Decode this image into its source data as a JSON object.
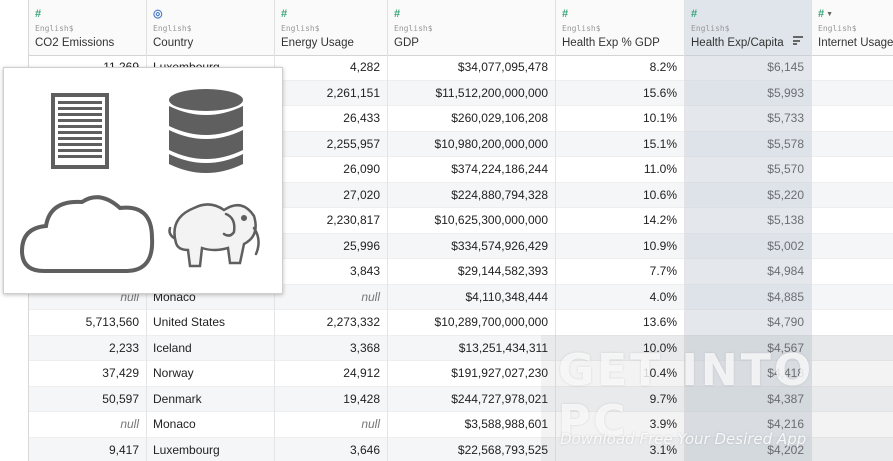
{
  "columns": [
    {
      "type_label": "English$",
      "name": "CO2 Emissions",
      "icon": "hash-icon"
    },
    {
      "type_label": "English$",
      "name": "Country",
      "icon": "globe-icon"
    },
    {
      "type_label": "English$",
      "name": "Energy Usage",
      "icon": "hash-icon"
    },
    {
      "type_label": "English$",
      "name": "GDP",
      "icon": "hash-icon"
    },
    {
      "type_label": "English$",
      "name": "Health Exp % GDP",
      "icon": "hash-icon"
    },
    {
      "type_label": "English$",
      "name": "Health Exp/Capita",
      "icon": "hash-icon"
    },
    {
      "type_label": "English$",
      "name": "Internet Usage",
      "icon": "hash-icon"
    }
  ],
  "rows": [
    [
      "11,269",
      "Luxembourg",
      "4,282",
      "$34,077,095,478",
      "8.2%",
      "$6,145",
      ""
    ],
    [
      "",
      "",
      "2,261,151",
      "$11,512,200,000,000",
      "15.6%",
      "$5,993",
      ""
    ],
    [
      "",
      "",
      "26,433",
      "$260,029,106,208",
      "10.1%",
      "$5,733",
      ""
    ],
    [
      "",
      "",
      "2,255,957",
      "$10,980,200,000,000",
      "15.1%",
      "$5,578",
      ""
    ],
    [
      "",
      "",
      "26,090",
      "$374,224,186,244",
      "11.0%",
      "$5,570",
      ""
    ],
    [
      "",
      "",
      "27,020",
      "$224,880,794,328",
      "10.6%",
      "$5,220",
      ""
    ],
    [
      "",
      "",
      "2,230,817",
      "$10,625,300,000,000",
      "14.2%",
      "$5,138",
      ""
    ],
    [
      "",
      "",
      "25,996",
      "$334,574,926,429",
      "10.9%",
      "$5,002",
      ""
    ],
    [
      "",
      "",
      "3,843",
      "$29,144,582,393",
      "7.7%",
      "$4,984",
      ""
    ],
    [
      "null",
      "Monaco",
      "null",
      "$4,110,348,444",
      "4.0%",
      "$4,885",
      ""
    ],
    [
      "5,713,560",
      "United States",
      "2,273,332",
      "$10,289,700,000,000",
      "13.6%",
      "$4,790",
      ""
    ],
    [
      "2,233",
      "Iceland",
      "3,368",
      "$13,251,434,311",
      "10.0%",
      "$4,567",
      ""
    ],
    [
      "37,429",
      "Norway",
      "24,912",
      "$191,927,027,230",
      "10.4%",
      "$4,418",
      ""
    ],
    [
      "50,597",
      "Denmark",
      "19,428",
      "$244,727,978,021",
      "9.7%",
      "$4,387",
      ""
    ],
    [
      "null",
      "Monaco",
      "null",
      "$3,588,988,601",
      "3.9%",
      "$4,216",
      ""
    ],
    [
      "9,417",
      "Luxembourg",
      "3,646",
      "$22,568,793,525",
      "3.1%",
      "$4,202",
      ""
    ]
  ],
  "overlay_icons": [
    "document-icon",
    "database-icon",
    "cloud-icon",
    "hadoop-elephant-icon"
  ],
  "watermark": {
    "title": "GET INTO PC",
    "subtitle": "Download Free Your Desired App"
  },
  "colors": {
    "selected_column": "#dfe5ea",
    "hash_icon": "#3aa57a",
    "globe_icon": "#4a7cc9",
    "icon_gray": "#5f5f5f"
  }
}
